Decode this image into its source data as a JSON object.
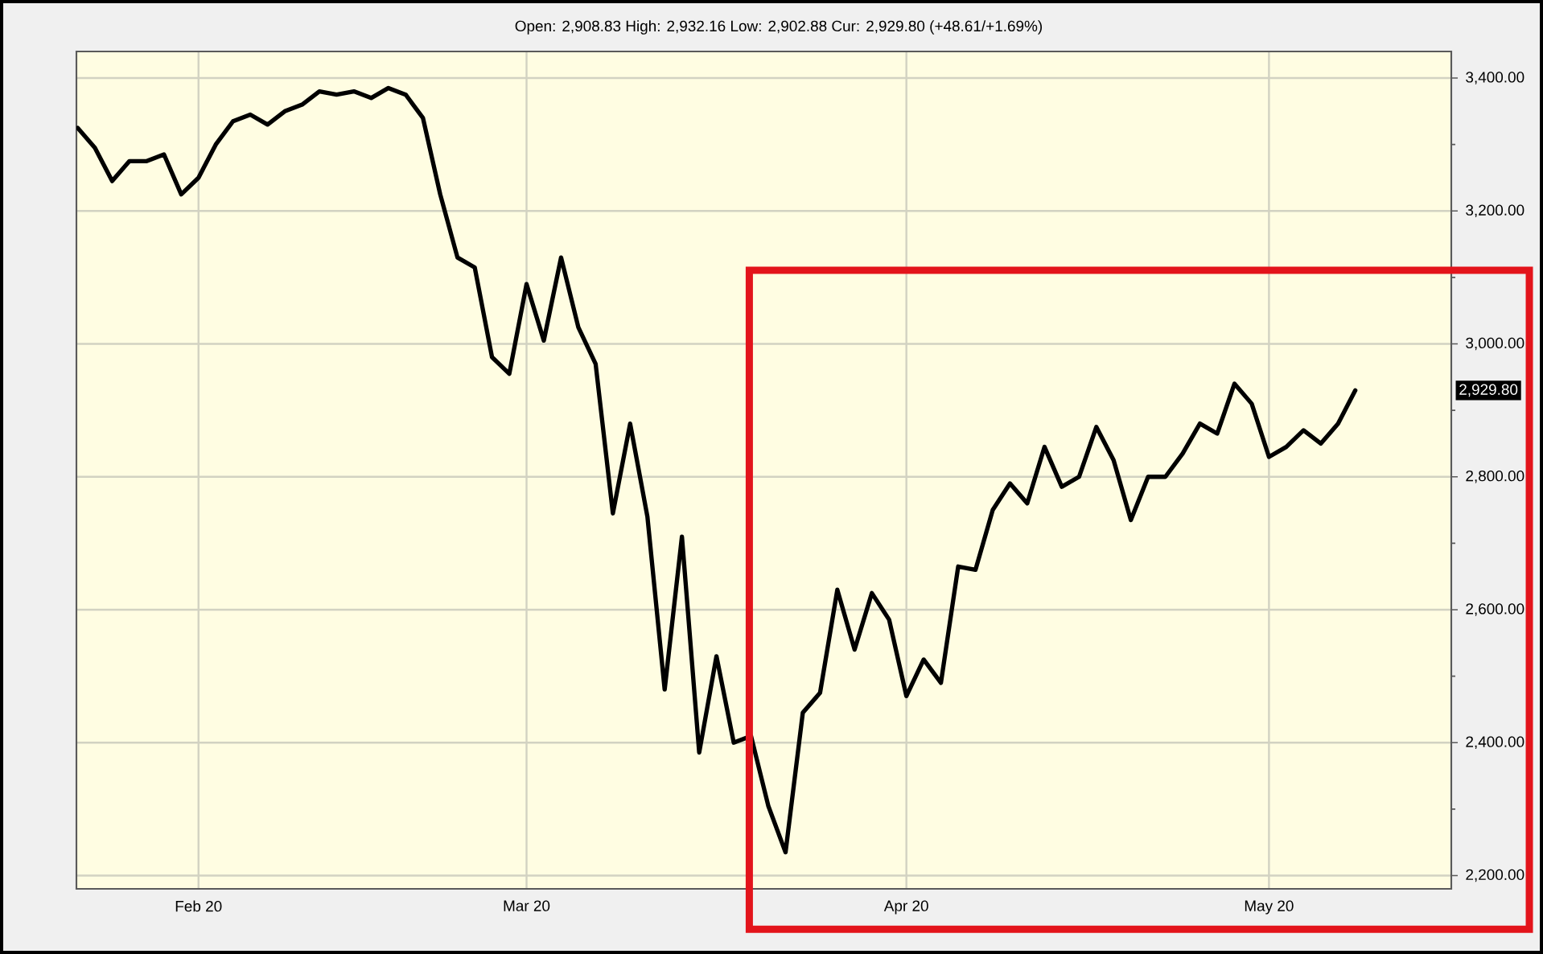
{
  "chart_data": {
    "type": "line",
    "subtitle": "Open: 2,908.83 High: 2,932.16 Low: 2,902.88 Cur: 2,929.80 (+48.61/+1.69%)",
    "categories": [
      null,
      null,
      null,
      null,
      null,
      null,
      null,
      "Feb 20",
      null,
      null,
      null,
      null,
      null,
      null,
      null,
      null,
      null,
      null,
      null,
      null,
      null,
      null,
      null,
      null,
      null,
      null,
      "Mar 20",
      null,
      null,
      null,
      null,
      null,
      null,
      null,
      null,
      null,
      null,
      null,
      null,
      null,
      null,
      null,
      null,
      null,
      null,
      null,
      null,
      null,
      "Apr 20",
      null,
      null,
      null,
      null,
      null,
      null,
      null,
      null,
      null,
      null,
      null,
      null,
      null,
      null,
      null,
      null,
      null,
      null,
      null,
      null,
      "May 20",
      null,
      null,
      null,
      null,
      null,
      null,
      null,
      null,
      null,
      null
    ],
    "values": [
      3325,
      3295,
      3245,
      3275,
      3275,
      3285,
      3225,
      3250,
      3300,
      3335,
      3345,
      3330,
      3350,
      3360,
      3380,
      3375,
      3380,
      3370,
      3385,
      3375,
      3340,
      3225,
      3130,
      3115,
      2980,
      2955,
      3090,
      3005,
      3130,
      3025,
      2970,
      2745,
      2880,
      2740,
      2480,
      2710,
      2385,
      2530,
      2400,
      2410,
      2305,
      2235,
      2445,
      2475,
      2630,
      2540,
      2625,
      2585,
      2470,
      2525,
      2490,
      2665,
      2660,
      2750,
      2790,
      2760,
      2845,
      2785,
      2800,
      2875,
      2825,
      2735,
      2800,
      2800,
      2835,
      2880,
      2865,
      2940,
      2910,
      2830,
      2845,
      2870,
      2850,
      2880,
      2930,
      null,
      null,
      null,
      null,
      null
    ],
    "color": "#000000",
    "ylim": [
      2180,
      3440
    ],
    "yticks": [
      {
        "value": 2200,
        "label": "2,200.00"
      },
      {
        "value": 2300,
        "label": null
      },
      {
        "value": 2400,
        "label": "2,400.00"
      },
      {
        "value": 2500,
        "label": null
      },
      {
        "value": 2600,
        "label": "2,600.00"
      },
      {
        "value": 2700,
        "label": null
      },
      {
        "value": 2800,
        "label": "2,800.00"
      },
      {
        "value": 2900,
        "label": null
      },
      {
        "value": 3000,
        "label": "3,000.00"
      },
      {
        "value": 3100,
        "label": null
      },
      {
        "value": 3200,
        "label": "3,200.00"
      },
      {
        "value": 3300,
        "label": null
      },
      {
        "value": 3400,
        "label": "3,400.00"
      }
    ],
    "grid": true,
    "annotations": [
      "2,929.80"
    ]
  }
}
